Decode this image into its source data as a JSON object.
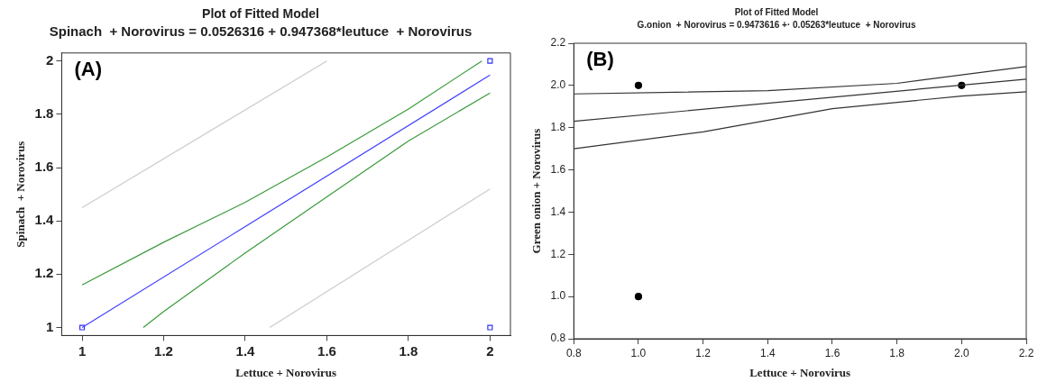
{
  "chart_data": [
    {
      "type": "scatter",
      "title": "Plot of Fitted Model",
      "subtitle": "Spinach  + Norovirus = 0.0526316 + 0.947368*leutuce  + Norovirus",
      "xlabel": "Lettuce + Norovirus",
      "ylabel": "Spinach  + Norovirus",
      "annotations": [
        "(A)"
      ],
      "xlim": [
        0.95,
        2.05
      ],
      "ylim": [
        0.97,
        2.03
      ],
      "xticks": [
        1,
        1.2,
        1.4,
        1.6,
        1.8,
        2
      ],
      "yticks": [
        1,
        1.2,
        1.4,
        1.6,
        1.8,
        2
      ],
      "grid": false,
      "legend": false,
      "series": [
        {
          "type": "line",
          "color": "#cccccc",
          "marker": "none",
          "x": [
            1,
            1.6
          ],
          "values": [
            1.45,
            2.0
          ]
        },
        {
          "type": "line",
          "color": "#cccccc",
          "marker": "none",
          "x": [
            1.46,
            2
          ],
          "values": [
            1.0,
            1.52
          ]
        },
        {
          "type": "line",
          "color": "#3a9a3a",
          "marker": "none",
          "x": [
            1,
            1.2,
            1.4,
            1.6,
            1.8,
            1.98
          ],
          "values": [
            1.16,
            1.32,
            1.47,
            1.64,
            1.82,
            2.0
          ]
        },
        {
          "type": "line",
          "color": "#3a9a3a",
          "marker": "none",
          "x": [
            1.15,
            1.2,
            1.4,
            1.6,
            1.8,
            2
          ],
          "values": [
            1.0,
            1.06,
            1.28,
            1.49,
            1.7,
            1.88
          ]
        },
        {
          "type": "line",
          "color": "#4040ff",
          "marker": "none",
          "x": [
            1,
            2
          ],
          "values": [
            1.0,
            1.947
          ]
        },
        {
          "type": "scatter",
          "color": "#3333ff",
          "marker": "square",
          "x": [
            1,
            2,
            2
          ],
          "values": [
            1,
            2,
            1
          ]
        }
      ]
    },
    {
      "type": "scatter",
      "title": "Plot of Fitted Model",
      "subtitle": "G.onion  + Norovirus = 0.9473616 +· 0.05263*leutuce  + Norovirus",
      "xlabel": "Lettuce + Norovirus",
      "ylabel": "Green onion + Norovirus",
      "annotations": [
        "(B)"
      ],
      "xlim": [
        0.8,
        2.2
      ],
      "ylim": [
        0.8,
        2.2
      ],
      "xticks": [
        0.8,
        {
          "value": 1,
          "label": "1.0"
        },
        1.2,
        1.4,
        1.6,
        1.8,
        {
          "value": 2,
          "label": "2.0"
        },
        2.2
      ],
      "yticks": [
        0.8,
        {
          "value": 1,
          "label": "1.0"
        },
        1.2,
        1.4,
        1.6,
        1.8,
        {
          "value": 2,
          "label": "2.0"
        },
        2.2
      ],
      "grid": false,
      "legend": false,
      "series": [
        {
          "type": "line",
          "color": "#333333",
          "marker": "none",
          "x": [
            0.8,
            1.4,
            1.8,
            2.2
          ],
          "values": [
            1.96,
            1.975,
            2.01,
            2.09
          ]
        },
        {
          "type": "line",
          "color": "#333333",
          "marker": "none",
          "x": [
            0.8,
            2.2
          ],
          "values": [
            1.83,
            2.03
          ]
        },
        {
          "type": "line",
          "color": "#333333",
          "marker": "none",
          "x": [
            0.8,
            1.2,
            1.6,
            2.0,
            2.2
          ],
          "values": [
            1.7,
            1.78,
            1.89,
            1.95,
            1.97
          ]
        },
        {
          "type": "scatter",
          "color": "#000000",
          "marker": "circle",
          "x": [
            1,
            1,
            2
          ],
          "values": [
            2,
            1,
            2
          ]
        }
      ]
    }
  ]
}
